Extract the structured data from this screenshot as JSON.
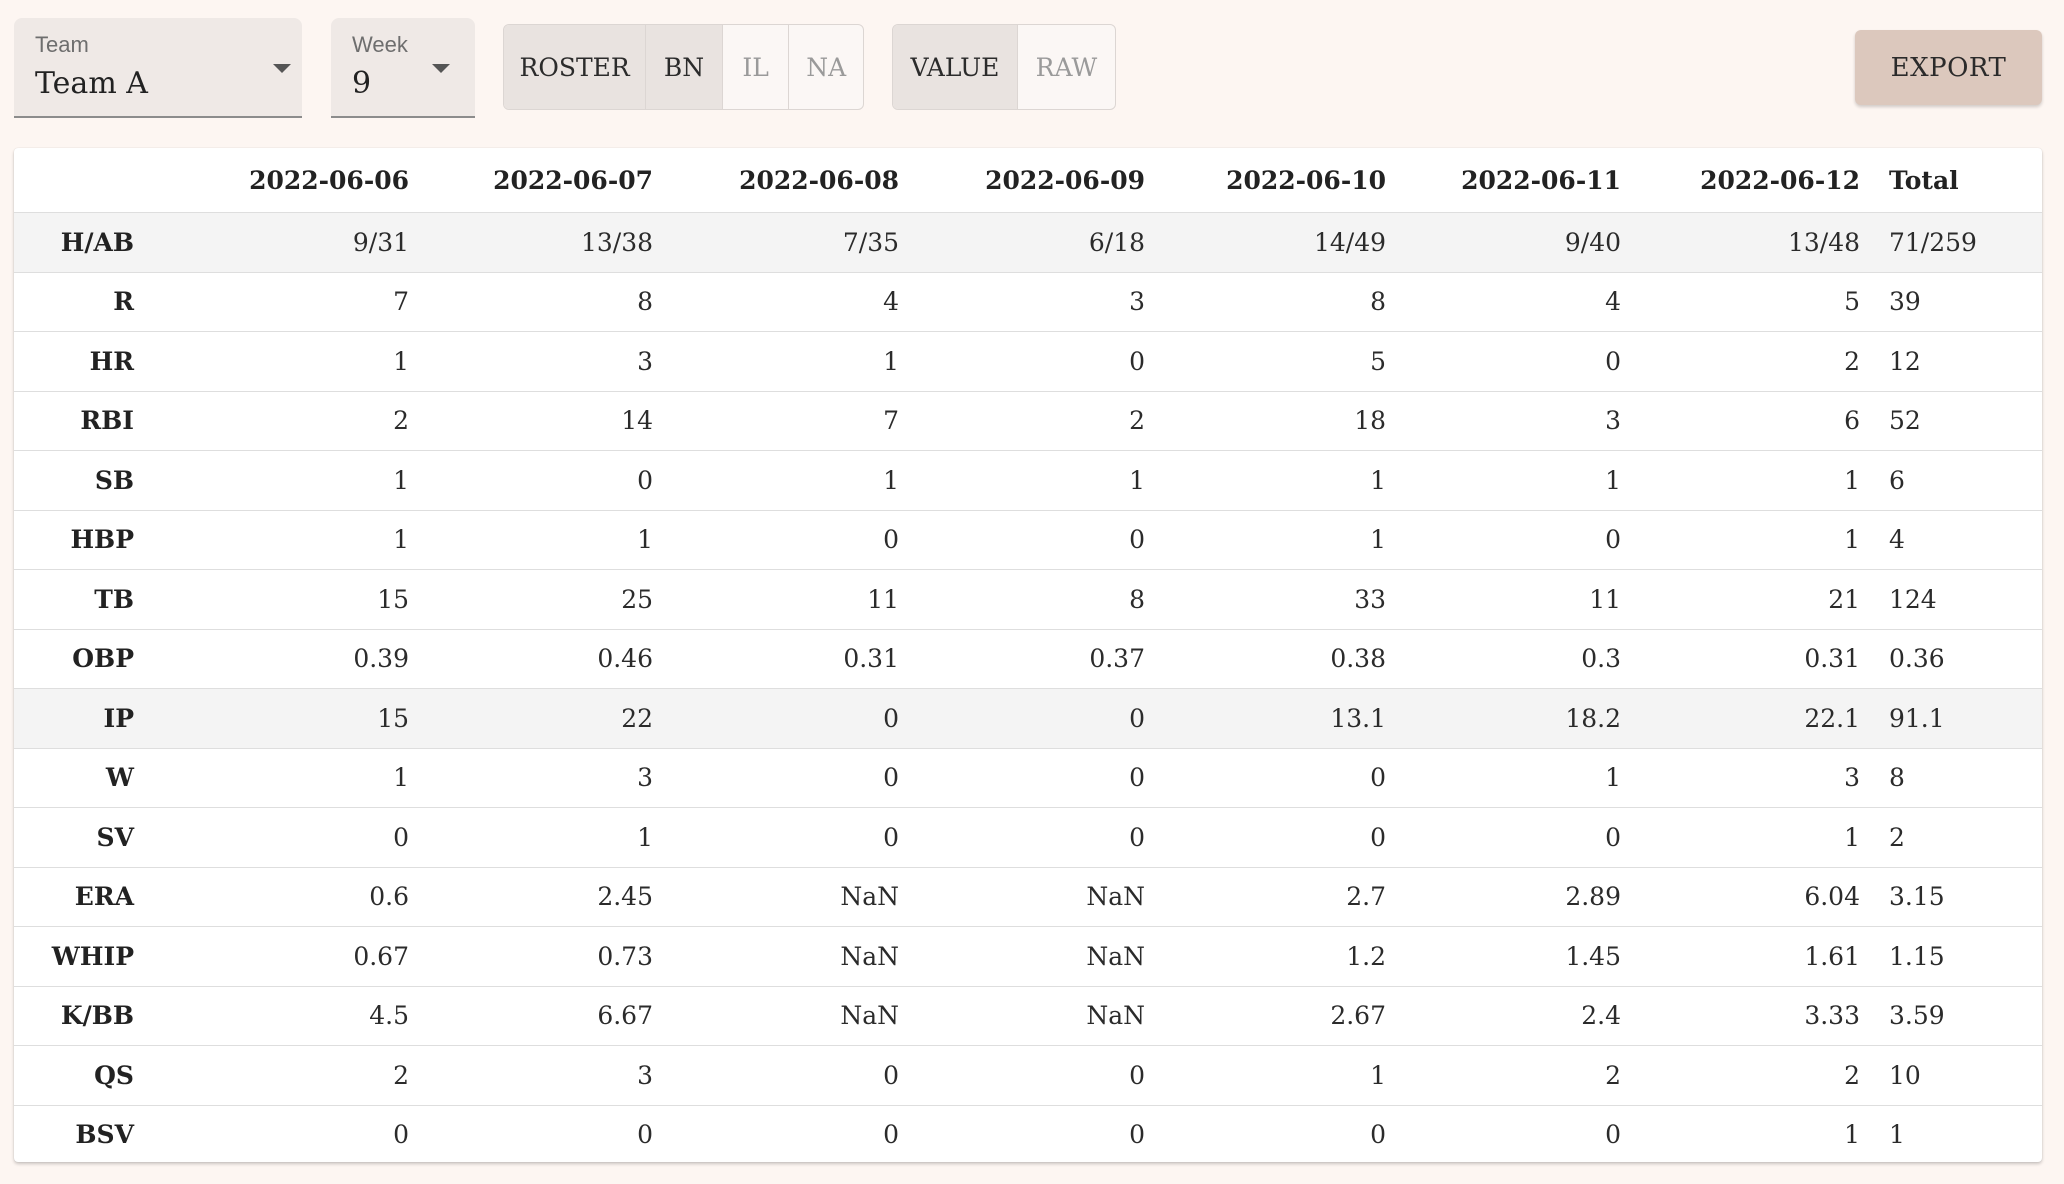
{
  "controls": {
    "team": {
      "label": "Team",
      "value": "Team A"
    },
    "week": {
      "label": "Week",
      "value": "9"
    },
    "roster_toggle": [
      {
        "label": "ROSTER",
        "selected": true
      },
      {
        "label": "BN",
        "selected": true
      },
      {
        "label": "IL",
        "selected": false
      },
      {
        "label": "NA",
        "selected": false
      }
    ],
    "mode_toggle": [
      {
        "label": "VALUE",
        "selected": true
      },
      {
        "label": "RAW",
        "selected": false
      }
    ],
    "export_label": "EXPORT"
  },
  "table": {
    "columns": [
      "",
      "2022-06-06",
      "2022-06-07",
      "2022-06-08",
      "2022-06-09",
      "2022-06-10",
      "2022-06-11",
      "2022-06-12",
      "Total"
    ],
    "rows": [
      {
        "stat": "H/AB",
        "shaded": true,
        "values": [
          "9/31",
          "13/38",
          "7/35",
          "6/18",
          "14/49",
          "9/40",
          "13/48",
          "71/259"
        ]
      },
      {
        "stat": "R",
        "values": [
          "7",
          "8",
          "4",
          "3",
          "8",
          "4",
          "5",
          "39"
        ]
      },
      {
        "stat": "HR",
        "values": [
          "1",
          "3",
          "1",
          "0",
          "5",
          "0",
          "2",
          "12"
        ]
      },
      {
        "stat": "RBI",
        "values": [
          "2",
          "14",
          "7",
          "2",
          "18",
          "3",
          "6",
          "52"
        ]
      },
      {
        "stat": "SB",
        "values": [
          "1",
          "0",
          "1",
          "1",
          "1",
          "1",
          "1",
          "6"
        ]
      },
      {
        "stat": "HBP",
        "values": [
          "1",
          "1",
          "0",
          "0",
          "1",
          "0",
          "1",
          "4"
        ]
      },
      {
        "stat": "TB",
        "values": [
          "15",
          "25",
          "11",
          "8",
          "33",
          "11",
          "21",
          "124"
        ]
      },
      {
        "stat": "OBP",
        "values": [
          "0.39",
          "0.46",
          "0.31",
          "0.37",
          "0.38",
          "0.3",
          "0.31",
          "0.36"
        ]
      },
      {
        "stat": "IP",
        "shaded": true,
        "values": [
          "15",
          "22",
          "0",
          "0",
          "13.1",
          "18.2",
          "22.1",
          "91.1"
        ]
      },
      {
        "stat": "W",
        "values": [
          "1",
          "3",
          "0",
          "0",
          "0",
          "1",
          "3",
          "8"
        ]
      },
      {
        "stat": "SV",
        "values": [
          "0",
          "1",
          "0",
          "0",
          "0",
          "0",
          "1",
          "2"
        ]
      },
      {
        "stat": "ERA",
        "values": [
          "0.6",
          "2.45",
          "NaN",
          "NaN",
          "2.7",
          "2.89",
          "6.04",
          "3.15"
        ]
      },
      {
        "stat": "WHIP",
        "values": [
          "0.67",
          "0.73",
          "NaN",
          "NaN",
          "1.2",
          "1.45",
          "1.61",
          "1.15"
        ]
      },
      {
        "stat": "K/BB",
        "values": [
          "4.5",
          "6.67",
          "NaN",
          "NaN",
          "2.67",
          "2.4",
          "3.33",
          "3.59"
        ]
      },
      {
        "stat": "QS",
        "values": [
          "2",
          "3",
          "0",
          "0",
          "1",
          "2",
          "2",
          "10"
        ]
      },
      {
        "stat": "BSV",
        "values": [
          "0",
          "0",
          "0",
          "0",
          "0",
          "0",
          "1",
          "1"
        ]
      }
    ]
  }
}
